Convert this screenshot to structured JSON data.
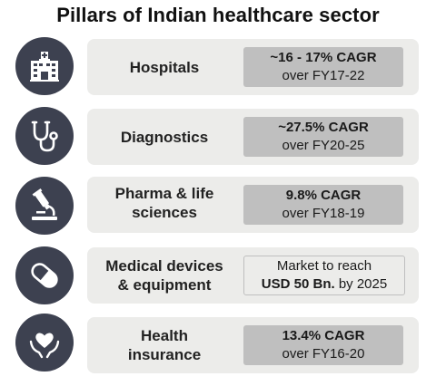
{
  "title": "Pillars of Indian healthcare sector",
  "pillars": [
    {
      "icon": "hospital-icon",
      "label_lines": [
        "Hospitals"
      ],
      "stat_top": "~16 - 17% CAGR",
      "stat_bottom": "over FY17-22"
    },
    {
      "icon": "stethoscope-icon",
      "label_lines": [
        "Diagnostics"
      ],
      "stat_top": "~27.5% CAGR",
      "stat_bottom": "over FY20-25"
    },
    {
      "icon": "microscope-icon",
      "label_lines": [
        "Pharma & life",
        "sciences"
      ],
      "stat_top": "9.8% CAGR",
      "stat_bottom": "over FY18-19"
    },
    {
      "icon": "pill-capsule-icon",
      "label_lines": [
        "Medical devices",
        "& equipment"
      ],
      "stat_top": "Market to reach",
      "stat_bottom_bold": "USD 50 Bn.",
      "stat_bottom_rest": " by 2025"
    },
    {
      "icon": "heart-hands-icon",
      "label_lines": [
        "Health",
        "insurance"
      ],
      "stat_top": "13.4% CAGR",
      "stat_bottom": "over FY16-20"
    }
  ]
}
